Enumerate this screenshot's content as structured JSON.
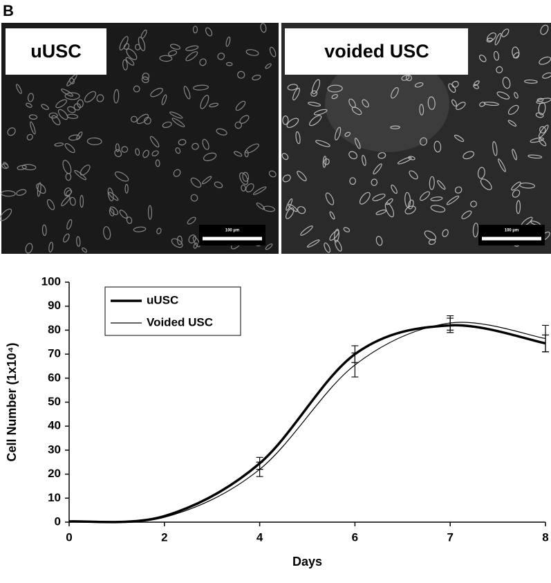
{
  "panel_label": "B",
  "images": [
    {
      "label": "uUSC",
      "scale_bar": "100 µm"
    },
    {
      "label": "voided USC",
      "scale_bar": "100 µm"
    }
  ],
  "chart_data": {
    "type": "line",
    "x_label": "Days",
    "y_label": "Cell Number (1x10⁴)",
    "categories": [
      "0",
      "2",
      "4",
      "6",
      "7",
      "8"
    ],
    "series": [
      {
        "name": "uUSC",
        "color": "#000000",
        "values": [
          0.3,
          2.5,
          24.5,
          70,
          82,
          74.5
        ],
        "errors": [
          0,
          0,
          2.5,
          3.5,
          3,
          3.5
        ]
      },
      {
        "name": "Voided USC",
        "color": "#000000",
        "values": [
          0.3,
          2,
          22,
          65.5,
          83,
          76.5
        ],
        "errors": [
          0,
          0,
          3,
          5,
          3,
          5.5
        ]
      }
    ],
    "ylim": [
      0,
      100
    ],
    "yticks": [
      0,
      10,
      20,
      30,
      40,
      50,
      60,
      70,
      80,
      90,
      100
    ],
    "legend": "top-left"
  }
}
